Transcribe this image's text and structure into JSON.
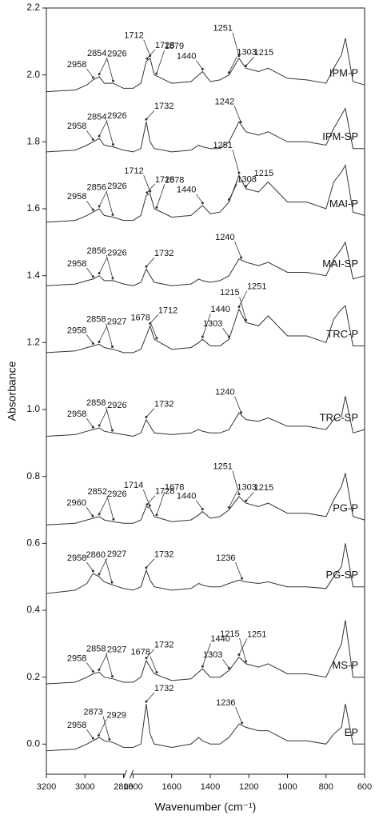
{
  "chart_data": {
    "type": "line",
    "x_label": "Wavenumber (cm⁻¹)",
    "y_label": "Absorbance",
    "xlim": [
      3200,
      600
    ],
    "x_break": [
      2800,
      1800
    ],
    "xticks": [
      3200,
      3000,
      2800,
      1800,
      1600,
      1400,
      1200,
      1000,
      800,
      600
    ],
    "ylim": [
      -0.09,
      2.2
    ],
    "yticks": [
      {
        "value": 0,
        "label": "0.0"
      },
      0.2,
      0.4,
      0.6,
      0.8,
      {
        "value": 1,
        "label": "1.0"
      },
      1.2,
      1.4,
      1.6,
      1.8,
      {
        "value": 2,
        "label": "2.0"
      },
      2.2
    ],
    "grid": false,
    "x": [
      3200,
      3050,
      2990,
      2958,
      2926,
      2900,
      2854,
      2800,
      1800,
      1760,
      1732,
      1712,
      1690,
      1600,
      1500,
      1460,
      1440,
      1400,
      1350,
      1303,
      1251,
      1215,
      1150,
      1100,
      1000,
      900,
      800,
      760,
      720,
      700,
      660,
      600
    ],
    "series": [
      {
        "name": "IPM-P",
        "color": "#333333",
        "peaks": [
          2958,
          2926,
          2854,
          1728,
          1712,
          1679,
          1440,
          1303,
          1251,
          1215
        ],
        "values": [
          1.95,
          1.955,
          1.97,
          1.985,
          1.995,
          1.975,
          1.975,
          1.96,
          1.96,
          1.975,
          2.04,
          2.05,
          2.0,
          1.975,
          1.98,
          2.0,
          2.01,
          1.98,
          1.985,
          2.0,
          2.05,
          2.02,
          2.01,
          2.02,
          1.99,
          1.985,
          1.975,
          2.02,
          2.06,
          2.11,
          1.98,
          1.97
        ]
      },
      {
        "name": "IPM-SP",
        "color": "#333333",
        "peaks": [
          2958,
          2926,
          2854,
          1732,
          1242
        ],
        "values": [
          1.77,
          1.775,
          1.79,
          1.8,
          1.81,
          1.79,
          1.785,
          1.775,
          1.77,
          1.78,
          1.86,
          1.8,
          1.78,
          1.77,
          1.775,
          1.79,
          1.785,
          1.78,
          1.78,
          1.8,
          1.86,
          1.83,
          1.82,
          1.83,
          1.8,
          1.8,
          1.79,
          1.84,
          1.88,
          1.9,
          1.78,
          1.78
        ]
      },
      {
        "name": "MAI-P",
        "color": "#333333",
        "peaks": [
          2958,
          2926,
          2856,
          1728,
          1712,
          1678,
          1440,
          1303,
          1251,
          1215
        ],
        "values": [
          1.56,
          1.565,
          1.58,
          1.59,
          1.6,
          1.58,
          1.575,
          1.565,
          1.565,
          1.58,
          1.64,
          1.645,
          1.6,
          1.575,
          1.58,
          1.6,
          1.61,
          1.585,
          1.59,
          1.62,
          1.7,
          1.66,
          1.65,
          1.68,
          1.62,
          1.62,
          1.6,
          1.68,
          1.71,
          1.73,
          1.59,
          1.58
        ]
      },
      {
        "name": "MAI-SP",
        "color": "#333333",
        "peaks": [
          2958,
          2926,
          2856,
          1732,
          1240
        ],
        "values": [
          1.37,
          1.375,
          1.385,
          1.39,
          1.4,
          1.385,
          1.385,
          1.375,
          1.37,
          1.38,
          1.42,
          1.4,
          1.38,
          1.37,
          1.375,
          1.39,
          1.385,
          1.38,
          1.385,
          1.4,
          1.45,
          1.44,
          1.43,
          1.44,
          1.41,
          1.41,
          1.4,
          1.45,
          1.48,
          1.5,
          1.39,
          1.4
        ]
      },
      {
        "name": "TRC-P",
        "color": "#333333",
        "peaks": [
          2958,
          2927,
          2858,
          1712,
          1678,
          1440,
          1303,
          1251,
          1215
        ],
        "values": [
          1.17,
          1.175,
          1.185,
          1.19,
          1.195,
          1.185,
          1.18,
          1.17,
          1.17,
          1.18,
          1.22,
          1.25,
          1.21,
          1.18,
          1.185,
          1.2,
          1.21,
          1.19,
          1.19,
          1.21,
          1.3,
          1.26,
          1.25,
          1.28,
          1.22,
          1.22,
          1.2,
          1.27,
          1.3,
          1.31,
          1.19,
          1.19
        ]
      },
      {
        "name": "TRC-SP",
        "color": "#333333",
        "peaks": [
          2958,
          2926,
          2858,
          1732,
          1240
        ],
        "values": [
          0.92,
          0.925,
          0.935,
          0.94,
          0.945,
          0.935,
          0.93,
          0.925,
          0.92,
          0.93,
          0.97,
          0.95,
          0.93,
          0.925,
          0.93,
          0.94,
          0.935,
          0.93,
          0.93,
          0.94,
          0.99,
          0.97,
          0.965,
          0.975,
          0.95,
          0.95,
          0.94,
          0.97,
          0.98,
          1.04,
          0.93,
          0.94
        ]
      },
      {
        "name": "PG-P",
        "color": "#333333",
        "peaks": [
          2960,
          2926,
          2852,
          1728,
          1714,
          1678,
          1440,
          1303,
          1251,
          1215
        ],
        "values": [
          0.655,
          0.66,
          0.67,
          0.675,
          0.68,
          0.67,
          0.665,
          0.66,
          0.66,
          0.67,
          0.71,
          0.705,
          0.68,
          0.665,
          0.67,
          0.685,
          0.695,
          0.675,
          0.68,
          0.7,
          0.74,
          0.72,
          0.71,
          0.72,
          0.69,
          0.69,
          0.68,
          0.73,
          0.77,
          0.81,
          0.68,
          0.67
        ]
      },
      {
        "name": "PG-SP",
        "color": "#333333",
        "peaks": [
          2958,
          2927,
          2860,
          1732,
          1236
        ],
        "values": [
          0.45,
          0.46,
          0.48,
          0.51,
          0.5,
          0.485,
          0.475,
          0.465,
          0.46,
          0.47,
          0.52,
          0.49,
          0.47,
          0.46,
          0.465,
          0.48,
          0.475,
          0.47,
          0.47,
          0.48,
          0.49,
          0.485,
          0.48,
          0.485,
          0.47,
          0.47,
          0.465,
          0.5,
          0.53,
          0.6,
          0.47,
          0.47
        ]
      },
      {
        "name": "MS-P",
        "color": "#333333",
        "peaks": [
          2958,
          2927,
          2858,
          1732,
          1678,
          1440,
          1303,
          1251,
          1215
        ],
        "values": [
          0.18,
          0.185,
          0.2,
          0.21,
          0.215,
          0.2,
          0.195,
          0.185,
          0.185,
          0.2,
          0.25,
          0.23,
          0.21,
          0.19,
          0.195,
          0.215,
          0.225,
          0.2,
          0.2,
          0.22,
          0.26,
          0.24,
          0.23,
          0.24,
          0.21,
          0.21,
          0.2,
          0.25,
          0.3,
          0.37,
          0.2,
          0.2
        ]
      },
      {
        "name": "EP",
        "color": "#333333",
        "peaks": [
          2958,
          2929,
          2873,
          1732,
          1236
        ],
        "values": [
          -0.02,
          -0.015,
          0.0,
          0.01,
          0.02,
          0.01,
          0.005,
          -0.01,
          -0.01,
          0.0,
          0.12,
          0.03,
          0.0,
          -0.01,
          0.0,
          0.02,
          0.01,
          0.0,
          0.0,
          0.02,
          0.06,
          0.05,
          0.04,
          0.04,
          0.01,
          0.01,
          0.0,
          0.03,
          0.05,
          0.12,
          0.0,
          0.0
        ]
      }
    ]
  }
}
